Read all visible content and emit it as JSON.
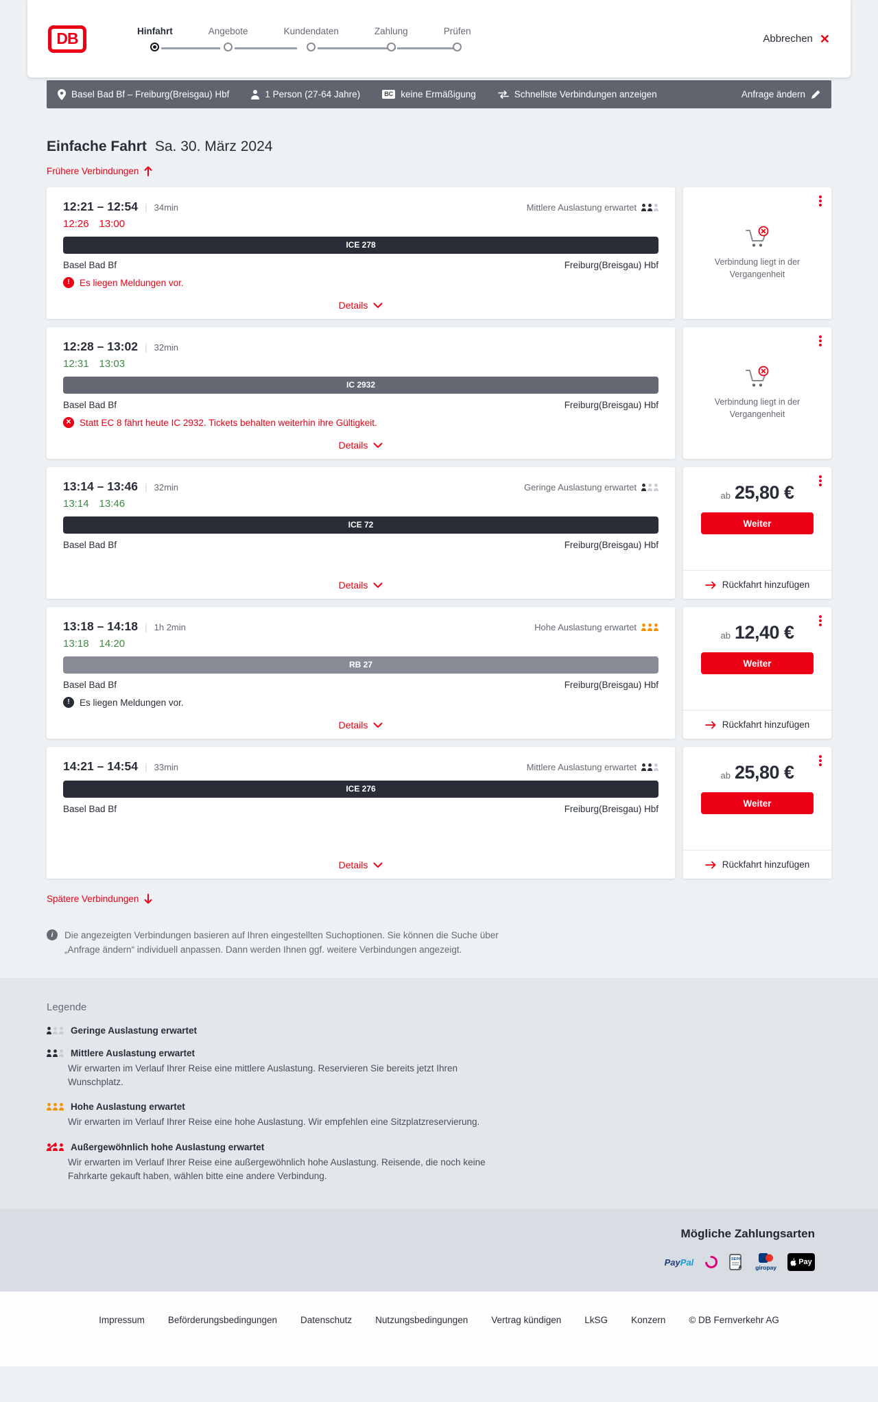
{
  "header": {
    "logo": "DB",
    "steps": [
      {
        "label": "Hinfahrt",
        "active": true
      },
      {
        "label": "Angebote",
        "active": false
      },
      {
        "label": "Kundendaten",
        "active": false
      },
      {
        "label": "Zahlung",
        "active": false
      },
      {
        "label": "Prüfen",
        "active": false
      }
    ],
    "cancel_label": "Abbrechen"
  },
  "query_bar": {
    "route": "Basel Bad Bf – Freiburg(Breisgau) Hbf",
    "passengers": "1 Person (27-64 Jahre)",
    "bc_badge": "BC",
    "discount": "keine Ermäßigung",
    "fastest": "Schnellste Verbindungen anzeigen",
    "change_request": "Anfrage ändern"
  },
  "page": {
    "title": "Einfache Fahrt",
    "date": "Sa. 30. März 2024",
    "earlier_label": "Frühere Verbindungen",
    "later_label": "Spätere Verbindungen",
    "info_text": "Die angezeigten Verbindungen basieren auf Ihren eingestellten Suchoptionen. Sie können die Suche über „Anfrage ändern“ individuell anpassen. Dann werden Ihnen ggf. weitere Verbindungen angezeigt."
  },
  "labels": {
    "details": "Details",
    "price_prefix": "ab",
    "cta": "Weiter",
    "add_return": "Rückfahrt hinzufügen"
  },
  "connections": [
    {
      "depart": "12:21",
      "arrive": "12:54",
      "duration": "34min",
      "realtime": {
        "times": [
          "12:26",
          "13:00"
        ],
        "status": "delayed"
      },
      "occupancy": {
        "label": "Mittlere Auslastung erwartet",
        "level": "medium"
      },
      "train": {
        "label": "ICE 278",
        "color": "#282d37"
      },
      "from": "Basel Bad Bf",
      "to": "Freiburg(Breisgau) Hbf",
      "message": {
        "text": "Es liegen Meldungen vor.",
        "style": "red",
        "icon": "exclamation"
      },
      "panel": {
        "type": "past",
        "text": "Verbindung liegt in der Vergangenheit"
      }
    },
    {
      "depart": "12:28",
      "arrive": "13:02",
      "duration": "32min",
      "realtime": {
        "times": [
          "12:31",
          "13:03"
        ],
        "status": "ontime"
      },
      "occupancy": null,
      "train": {
        "label": "IC 2932",
        "color": "#646973"
      },
      "from": "Basel Bad Bf",
      "to": "Freiburg(Breisgau) Hbf",
      "message": {
        "text": "Statt EC 8 fährt heute IC 2932. Tickets behalten weiterhin ihre Gültigkeit.",
        "style": "red",
        "icon": "cross"
      },
      "panel": {
        "type": "past",
        "text": "Verbindung liegt in der Vergangenheit"
      }
    },
    {
      "depart": "13:14",
      "arrive": "13:46",
      "duration": "32min",
      "realtime": {
        "times": [
          "13:14",
          "13:46"
        ],
        "status": "ontime"
      },
      "occupancy": {
        "label": "Geringe Auslastung erwartet",
        "level": "low"
      },
      "train": {
        "label": "ICE 72",
        "color": "#282d37"
      },
      "from": "Basel Bad Bf",
      "to": "Freiburg(Breisgau) Hbf",
      "message": null,
      "panel": {
        "type": "price",
        "price": "25,80 €"
      }
    },
    {
      "depart": "13:18",
      "arrive": "14:18",
      "duration": "1h 2min",
      "realtime": {
        "times": [
          "13:18",
          "14:20"
        ],
        "status": "ontime"
      },
      "occupancy": {
        "label": "Hohe Auslastung erwartet",
        "level": "high"
      },
      "train": {
        "label": "RB 27",
        "color": "#878c96"
      },
      "from": "Basel Bad Bf",
      "to": "Freiburg(Breisgau) Hbf",
      "message": {
        "text": "Es liegen Meldungen vor.",
        "style": "dark",
        "icon": "exclamation"
      },
      "panel": {
        "type": "price",
        "price": "12,40 €"
      }
    },
    {
      "depart": "14:21",
      "arrive": "14:54",
      "duration": "33min",
      "realtime": null,
      "occupancy": {
        "label": "Mittlere Auslastung erwartet",
        "level": "medium"
      },
      "train": {
        "label": "ICE 276",
        "color": "#282d37"
      },
      "from": "Basel Bad Bf",
      "to": "Freiburg(Breisgau) Hbf",
      "message": null,
      "panel": {
        "type": "price",
        "price": "25,80 €"
      }
    }
  ],
  "legend": {
    "title": "Legende",
    "items": [
      {
        "level": "low",
        "title": "Geringe Auslastung erwartet",
        "desc": ""
      },
      {
        "level": "medium",
        "title": "Mittlere Auslastung erwartet",
        "desc": "Wir erwarten im Verlauf Ihrer Reise eine mittlere Auslastung. Reservieren Sie bereits jetzt Ihren Wunschplatz."
      },
      {
        "level": "high",
        "title": "Hohe Auslastung erwartet",
        "desc": "Wir erwarten im Verlauf Ihrer Reise eine hohe Auslastung. Wir empfehlen eine Sitzplatzreservierung."
      },
      {
        "level": "very-high",
        "title": "Außergewöhnlich hohe Auslastung erwartet",
        "desc": "Wir erwarten im Verlauf Ihrer Reise eine außergewöhnlich hohe Auslastung. Reisende, die noch keine Fahrkarte gekauft haben, wählen bitte eine andere Verbindung."
      }
    ]
  },
  "payment": {
    "title": "Mögliche Zahlungsarten",
    "logos": {
      "paypal_1": "Pay",
      "paypal_2": "Pal",
      "sepa": "SEPA",
      "giropay": "giropay",
      "apple": "Pay"
    },
    "methods": [
      "PayPal",
      "Sofort",
      "SEPA-Lastschrift",
      "giropay",
      "Apple Pay"
    ]
  },
  "footer": {
    "links": [
      "Impressum",
      "Beförderungsbedingungen",
      "Datenschutz",
      "Nutzungsbedingungen",
      "Vertrag kündigen",
      "LkSG",
      "Konzern",
      "© DB Fernverkehr AG"
    ]
  },
  "colors": {
    "brand": "#ec0016",
    "dark": "#282d37",
    "gray": "#646973",
    "green": "#3d8a40",
    "orange": "#f39200"
  }
}
